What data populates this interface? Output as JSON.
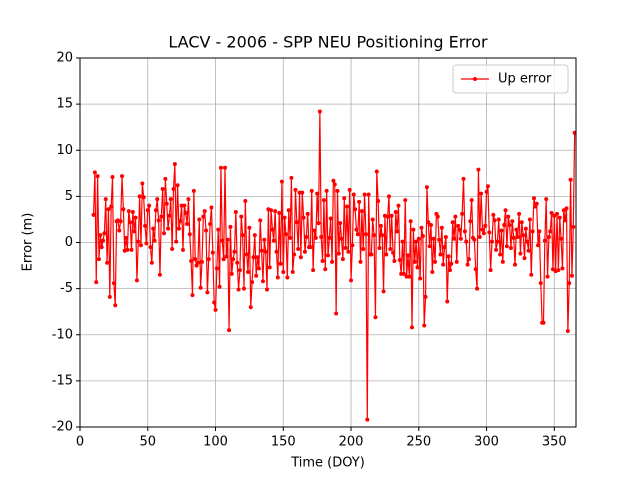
{
  "chart_data": {
    "type": "line",
    "title": "LACV - 2006 - SPP NEU Positioning Error",
    "x_label": "Time (DOY)",
    "y_label": "Error (m)",
    "xlim": [
      0,
      366
    ],
    "ylim": [
      -20,
      20
    ],
    "xticks": [
      0,
      50,
      100,
      150,
      200,
      250,
      300,
      350
    ],
    "yticks": [
      -20,
      -15,
      -10,
      -5,
      0,
      5,
      10,
      15,
      20
    ],
    "grid": true,
    "legend": "upper right",
    "x": [
      10,
      11,
      12,
      13,
      14,
      15,
      16,
      17,
      18,
      19,
      20,
      21,
      22,
      23,
      24,
      25,
      26,
      27,
      28,
      29,
      30,
      31,
      32,
      33,
      34,
      35,
      36,
      37,
      38,
      39,
      40,
      41,
      42,
      43,
      44,
      45,
      46,
      47,
      48,
      49,
      50,
      51,
      52,
      53,
      54,
      55,
      56,
      57,
      58,
      59,
      60,
      61,
      62,
      63,
      64,
      65,
      66,
      67,
      68,
      69,
      70,
      71,
      72,
      73,
      74,
      75,
      76,
      77,
      78,
      79,
      80,
      81,
      82,
      83,
      84,
      85,
      86,
      87,
      88,
      89,
      90,
      91,
      92,
      93,
      94,
      95,
      96,
      97,
      98,
      99,
      100,
      101,
      102,
      103,
      104,
      105,
      106,
      107,
      108,
      109,
      110,
      111,
      112,
      113,
      114,
      115,
      116,
      117,
      118,
      119,
      120,
      121,
      122,
      123,
      124,
      125,
      126,
      127,
      128,
      129,
      130,
      131,
      132,
      133,
      134,
      135,
      136,
      137,
      138,
      139,
      140,
      141,
      142,
      143,
      144,
      145,
      146,
      147,
      148,
      149,
      150,
      151,
      152,
      153,
      154,
      155,
      156,
      157,
      158,
      159,
      160,
      161,
      162,
      163,
      164,
      165,
      166,
      167,
      168,
      169,
      170,
      171,
      172,
      173,
      174,
      175,
      176,
      177,
      178,
      179,
      180,
      181,
      182,
      183,
      184,
      185,
      186,
      187,
      188,
      189,
      190,
      191,
      192,
      193,
      194,
      195,
      196,
      197,
      198,
      199,
      200,
      201,
      202,
      203,
      204,
      205,
      206,
      207,
      208,
      209,
      210,
      211,
      212,
      213,
      214,
      215,
      216,
      217,
      218,
      219,
      220,
      221,
      222,
      223,
      224,
      225,
      226,
      227,
      228,
      229,
      230,
      231,
      232,
      233,
      234,
      235,
      236,
      237,
      238,
      239,
      240,
      241,
      242,
      243,
      244,
      245,
      246,
      247,
      248,
      249,
      250,
      251,
      252,
      253,
      254,
      255,
      256,
      257,
      258,
      259,
      260,
      261,
      262,
      263,
      264,
      265,
      266,
      267,
      268,
      269,
      270,
      271,
      272,
      273,
      274,
      275,
      276,
      277,
      278,
      279,
      280,
      281,
      282,
      283,
      284,
      285,
      286,
      287,
      288,
      289,
      290,
      291,
      292,
      293,
      294,
      295,
      296,
      297,
      298,
      299,
      300,
      301,
      302,
      303,
      304,
      305,
      306,
      307,
      308,
      309,
      310,
      311,
      312,
      313,
      314,
      315,
      316,
      317,
      318,
      319,
      320,
      321,
      322,
      323,
      324,
      325,
      326,
      327,
      328,
      329,
      330,
      331,
      332,
      333,
      334,
      335,
      336,
      337,
      338,
      339,
      340,
      341,
      342,
      343,
      344,
      345,
      346,
      347,
      348,
      349,
      350,
      351,
      352,
      353,
      354,
      355,
      356,
      357,
      358,
      359,
      360,
      361,
      362,
      363,
      364,
      365
    ],
    "series": [
      {
        "name": "Up error",
        "color": "#ff0000",
        "values": [
          3,
          7.6,
          -4.3,
          7.2,
          -1.8,
          0.8,
          -0.5,
          0.2,
          1,
          4.7,
          -2.2,
          3.6,
          -5.9,
          3.9,
          7.1,
          -4.4,
          -6.8,
          2.3,
          2.4,
          1.3,
          2.3,
          7.2,
          3.6,
          -0.9,
          0.5,
          -0.8,
          3.4,
          2.2,
          -0.8,
          3.3,
          1.2,
          2.7,
          -4.1,
          0.1,
          5,
          -0.3,
          6.4,
          4.9,
          1.8,
          -0.1,
          3.5,
          4,
          -0.5,
          -2.2,
          1.5,
          0.2,
          3.5,
          4.7,
          2.4,
          -3.5,
          2.8,
          5.8,
          1,
          6.9,
          4.2,
          1.5,
          2.9,
          4.7,
          -0.7,
          5.8,
          8.5,
          0.1,
          6.2,
          1.5,
          2.3,
          4,
          -0.8,
          4,
          3.2,
          2,
          4.7,
          0.9,
          -2,
          -5.7,
          5.6,
          -1.8,
          -2.5,
          -2.2,
          2.5,
          -4.9,
          -2.1,
          2.8,
          3.4,
          1.3,
          -5.4,
          -1.8,
          2,
          3.8,
          -1.1,
          -6.5,
          -7.3,
          -2.8,
          1.4,
          -4.8,
          8.1,
          0.2,
          -1.8,
          8.1,
          -1.5,
          0.3,
          -9.5,
          1.7,
          -3.4,
          -1.8,
          -1,
          3.3,
          -2.2,
          -5.1,
          -3,
          2.8,
          0.8,
          -5,
          4.5,
          -1.3,
          -3.2,
          1.6,
          -7,
          -4.3,
          -1.6,
          0.8,
          -3.6,
          -1.6,
          -2.8,
          2.4,
          -0.9,
          -4.2,
          0.3,
          -1,
          -5.1,
          3.6,
          -2.7,
          3.5,
          1.4,
          0.2,
          3.4,
          -1,
          -3.8,
          3.2,
          -2.3,
          6.6,
          -3.2,
          2.7,
          0.9,
          -3.8,
          3.5,
          0.5,
          7,
          -3.2,
          -1.3,
          5.7,
          2.2,
          -0.7,
          5.4,
          -1.6,
          5.4,
          2.7,
          -1,
          0.6,
          3.1,
          -0.5,
          -0.5,
          5.6,
          -3,
          1.3,
          0.5,
          5.3,
          2.1,
          14.2,
          0.6,
          -2,
          4.6,
          -2.9,
          5.6,
          -1.4,
          0.5,
          2.6,
          -2.1,
          6.7,
          6.3,
          -7.7,
          5.6,
          -1.2,
          2.1,
          0.4,
          -1.8,
          4.8,
          -0.6,
          3.9,
          -1,
          5.7,
          -4.1,
          -0.3,
          5.2,
          3.6,
          1.4,
          0.9,
          4.4,
          -2.1,
          3.4,
          -0.7,
          5.2,
          0.9,
          -19.2,
          5.2,
          -1.3,
          -1.3,
          2.5,
          0.8,
          -8.1,
          7.7,
          4.5,
          -0.6,
          1.8,
          0.8,
          -5.3,
          2.9,
          -1.3,
          2.8,
          5,
          -0.7,
          2.9,
          -1.1,
          -2,
          3.3,
          1.2,
          4,
          -1.9,
          -3.4,
          0.1,
          -3.4,
          4.6,
          -3.7,
          -1.4,
          -3.7,
          2.3,
          -9.2,
          1.4,
          -2.1,
          0.1,
          -2.7,
          0.4,
          -3.9,
          1.6,
          0.7,
          -9,
          -5.9,
          6,
          2.2,
          -0.4,
          1.9,
          -3.2,
          0.4,
          -2.1,
          3.1,
          2.8,
          0.3,
          -1.3,
          1.6,
          -2.4,
          -0.5,
          0.6,
          -6.4,
          -1.5,
          -3,
          -2.3,
          2.2,
          0.4,
          2.8,
          -2.1,
          1.8,
          1.4,
          0.4,
          3.1,
          6.9,
          1.2,
          0.1,
          -2.4,
          -1.8,
          2.3,
          4.6,
          0.5,
          0.3,
          -2.9,
          -5,
          7.9,
          0.6,
          5.3,
          1.4,
          1,
          1.8,
          5.5,
          6.1,
          1.1,
          -3,
          0.1,
          3,
          2.4,
          -0.8,
          0.1,
          2.5,
          -1.3,
          1.3,
          -2.1,
          1.9,
          3.5,
          -0.4,
          2.8,
          1.9,
          -0.6,
          2.3,
          0.5,
          -2.4,
          1.4,
          0.6,
          3.1,
          -1.2,
          2.2,
          0.8,
          -1.7,
          1.5,
          0.1,
          -0.9,
          2.5,
          -3.5,
          1.2,
          4.8,
          3.9,
          4.2,
          -0.3,
          1.2,
          -4.4,
          -8.7,
          -8.7,
          0.2,
          4.7,
          -3.7,
          0.6,
          1.2,
          3.2,
          -2.9,
          2.9,
          -3.1,
          3.1,
          -3,
          2.7,
          0.4,
          -2.8,
          3.5,
          2.4,
          3.7,
          -9.6,
          -4.4,
          6.8,
          -3.6,
          1.7,
          11.9
        ]
      }
    ]
  }
}
